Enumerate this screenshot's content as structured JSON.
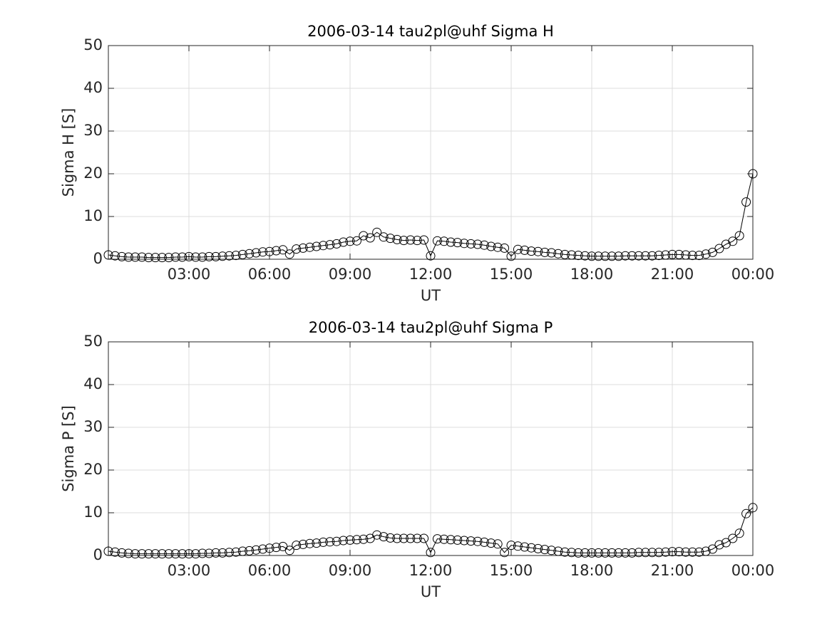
{
  "chart_data": [
    {
      "type": "line",
      "title": "2006-03-14  tau2pl@uhf Sigma H",
      "xlabel": "UT",
      "ylabel": "Sigma H [S]",
      "grid": true,
      "marker": "o",
      "xlim": [
        0,
        24
      ],
      "ylim": [
        0,
        50
      ],
      "xticks": [
        {
          "value": 3,
          "label": "03:00"
        },
        {
          "value": 6,
          "label": "06:00"
        },
        {
          "value": 9,
          "label": "09:00"
        },
        {
          "value": 12,
          "label": "12:00"
        },
        {
          "value": 15,
          "label": "15:00"
        },
        {
          "value": 18,
          "label": "18:00"
        },
        {
          "value": 21,
          "label": "21:00"
        },
        {
          "value": 24,
          "label": "00:00"
        }
      ],
      "yticks": [
        0,
        10,
        20,
        30,
        40,
        50
      ],
      "x": [
        0,
        0.25,
        0.5,
        0.75,
        1,
        1.25,
        1.5,
        1.75,
        2,
        2.25,
        2.5,
        2.75,
        3,
        3.25,
        3.5,
        3.75,
        4,
        4.25,
        4.5,
        4.75,
        5,
        5.25,
        5.5,
        5.75,
        6,
        6.25,
        6.5,
        6.75,
        7,
        7.25,
        7.5,
        7.75,
        8,
        8.25,
        8.5,
        8.75,
        9,
        9.25,
        9.5,
        9.75,
        10,
        10.25,
        10.5,
        10.75,
        11,
        11.25,
        11.5,
        11.75,
        12,
        12.25,
        12.5,
        12.75,
        13,
        13.25,
        13.5,
        13.75,
        14,
        14.25,
        14.5,
        14.75,
        15,
        15.25,
        15.5,
        15.75,
        16,
        16.25,
        16.5,
        16.75,
        17,
        17.25,
        17.5,
        17.75,
        18,
        18.25,
        18.5,
        18.75,
        19,
        19.25,
        19.5,
        19.75,
        20,
        20.25,
        20.5,
        20.75,
        21,
        21.25,
        21.5,
        21.75,
        22,
        22.25,
        22.5,
        22.75,
        23,
        23.25,
        23.5,
        23.75,
        24
      ],
      "series": [
        {
          "color": "#000000",
          "values": [
            1.0,
            0.8,
            0.6,
            0.5,
            0.5,
            0.5,
            0.4,
            0.4,
            0.4,
            0.4,
            0.5,
            0.5,
            0.6,
            0.5,
            0.5,
            0.6,
            0.6,
            0.7,
            0.8,
            0.9,
            1.1,
            1.3,
            1.5,
            1.7,
            1.8,
            2.0,
            2.2,
            1.2,
            2.4,
            2.6,
            2.8,
            3.0,
            3.2,
            3.4,
            3.6,
            4.0,
            4.2,
            4.3,
            5.5,
            5.0,
            6.3,
            5.2,
            4.9,
            4.6,
            4.4,
            4.5,
            4.4,
            4.5,
            0.8,
            4.3,
            4.2,
            4.0,
            3.9,
            3.7,
            3.6,
            3.5,
            3.3,
            3.0,
            2.8,
            2.6,
            0.7,
            2.3,
            2.1,
            1.9,
            1.8,
            1.6,
            1.5,
            1.3,
            1.1,
            1.0,
            0.9,
            0.8,
            0.7,
            0.7,
            0.7,
            0.7,
            0.7,
            0.8,
            0.8,
            0.8,
            0.8,
            0.8,
            0.9,
            1.0,
            1.1,
            1.1,
            1.0,
            0.9,
            0.9,
            1.2,
            1.6,
            2.5,
            3.5,
            4.2,
            5.5,
            13.4,
            20.0
          ]
        }
      ]
    },
    {
      "type": "line",
      "title": "2006-03-14  tau2pl@uhf Sigma P",
      "xlabel": "UT",
      "ylabel": "Sigma P [S]",
      "grid": true,
      "marker": "o",
      "xlim": [
        0,
        24
      ],
      "ylim": [
        0,
        50
      ],
      "xticks": [
        {
          "value": 3,
          "label": "03:00"
        },
        {
          "value": 6,
          "label": "06:00"
        },
        {
          "value": 9,
          "label": "09:00"
        },
        {
          "value": 12,
          "label": "12:00"
        },
        {
          "value": 15,
          "label": "15:00"
        },
        {
          "value": 18,
          "label": "18:00"
        },
        {
          "value": 21,
          "label": "21:00"
        },
        {
          "value": 24,
          "label": "00:00"
        }
      ],
      "yticks": [
        0,
        10,
        20,
        30,
        40,
        50
      ],
      "x": [
        0,
        0.25,
        0.5,
        0.75,
        1,
        1.25,
        1.5,
        1.75,
        2,
        2.25,
        2.5,
        2.75,
        3,
        3.25,
        3.5,
        3.75,
        4,
        4.25,
        4.5,
        4.75,
        5,
        5.25,
        5.5,
        5.75,
        6,
        6.25,
        6.5,
        6.75,
        7,
        7.25,
        7.5,
        7.75,
        8,
        8.25,
        8.5,
        8.75,
        9,
        9.25,
        9.5,
        9.75,
        10,
        10.25,
        10.5,
        10.75,
        11,
        11.25,
        11.5,
        11.75,
        12,
        12.25,
        12.5,
        12.75,
        13,
        13.25,
        13.5,
        13.75,
        14,
        14.25,
        14.5,
        14.75,
        15,
        15.25,
        15.5,
        15.75,
        16,
        16.25,
        16.5,
        16.75,
        17,
        17.25,
        17.5,
        17.75,
        18,
        18.25,
        18.5,
        18.75,
        19,
        19.25,
        19.5,
        19.75,
        20,
        20.25,
        20.5,
        20.75,
        21,
        21.25,
        21.5,
        21.75,
        22,
        22.25,
        22.5,
        22.75,
        23,
        23.25,
        23.5,
        23.75,
        24
      ],
      "series": [
        {
          "color": "#000000",
          "values": [
            1.0,
            0.8,
            0.6,
            0.5,
            0.4,
            0.4,
            0.4,
            0.4,
            0.4,
            0.4,
            0.4,
            0.4,
            0.4,
            0.4,
            0.5,
            0.5,
            0.6,
            0.6,
            0.7,
            0.8,
            1.0,
            1.1,
            1.3,
            1.5,
            1.7,
            1.9,
            2.1,
            1.2,
            2.4,
            2.6,
            2.8,
            2.9,
            3.1,
            3.2,
            3.3,
            3.5,
            3.6,
            3.7,
            3.8,
            4.0,
            4.8,
            4.4,
            4.1,
            4.0,
            4.0,
            4.0,
            4.0,
            4.0,
            0.7,
            3.9,
            3.8,
            3.7,
            3.6,
            3.5,
            3.4,
            3.3,
            3.1,
            2.9,
            2.7,
            0.7,
            2.4,
            2.2,
            2.0,
            1.8,
            1.6,
            1.4,
            1.2,
            1.0,
            0.8,
            0.7,
            0.6,
            0.6,
            0.6,
            0.6,
            0.6,
            0.6,
            0.6,
            0.6,
            0.6,
            0.7,
            0.7,
            0.7,
            0.7,
            0.8,
            0.9,
            0.9,
            0.8,
            0.8,
            0.8,
            1.0,
            1.5,
            2.5,
            3.0,
            4.0,
            5.2,
            9.8,
            11.2
          ]
        }
      ]
    }
  ]
}
